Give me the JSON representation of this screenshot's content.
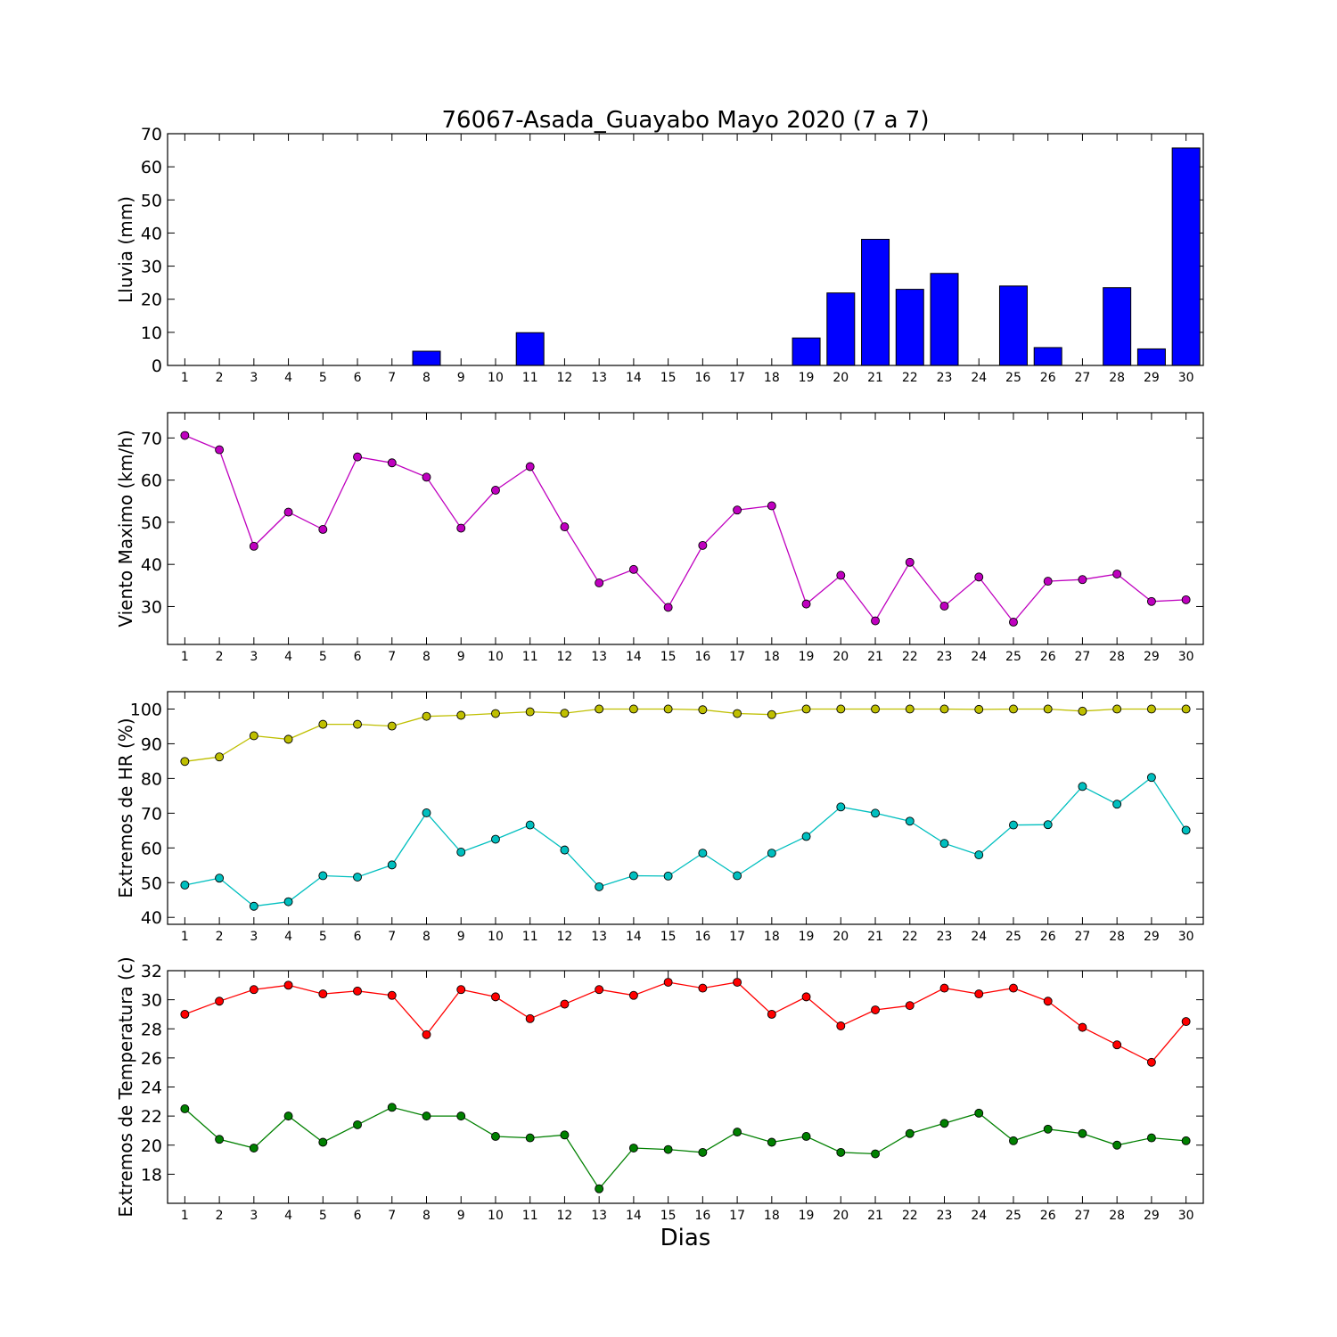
{
  "title": "76067-Asada_Guayabo Mayo 2020  (7 a 7)",
  "xlabel": "Dias",
  "chart_data": [
    {
      "type": "bar",
      "ylabel": "Lluvia (mm)",
      "x": [
        1,
        2,
        3,
        4,
        5,
        6,
        7,
        8,
        9,
        10,
        11,
        12,
        13,
        14,
        15,
        16,
        17,
        18,
        19,
        20,
        21,
        22,
        23,
        24,
        25,
        26,
        27,
        28,
        29,
        30
      ],
      "ylim": [
        0,
        70
      ],
      "yticks": [
        0,
        10,
        20,
        30,
        40,
        50,
        60,
        70
      ],
      "series": [
        {
          "color": "#0000ff",
          "values": [
            0,
            0,
            0,
            0,
            0,
            0,
            0,
            4.3,
            0,
            0,
            9.9,
            0,
            0,
            0,
            0,
            0,
            0,
            0,
            8.3,
            21.9,
            38.1,
            23.0,
            27.8,
            0,
            24.0,
            5.4,
            0,
            23.5,
            5.0,
            65.7
          ]
        }
      ]
    },
    {
      "type": "line",
      "ylabel": "Viento Maximo (km/h)",
      "x": [
        1,
        2,
        3,
        4,
        5,
        6,
        7,
        8,
        9,
        10,
        11,
        12,
        13,
        14,
        15,
        16,
        17,
        18,
        19,
        20,
        21,
        22,
        23,
        24,
        25,
        26,
        27,
        28,
        29,
        30
      ],
      "ylim": [
        21,
        76
      ],
      "yticks": [
        30,
        40,
        50,
        60,
        70
      ],
      "series": [
        {
          "color": "#bf00bf",
          "values": [
            70.6,
            67.2,
            44.3,
            52.4,
            48.3,
            65.5,
            64.1,
            60.7,
            48.6,
            57.6,
            63.2,
            48.9,
            35.6,
            38.8,
            29.8,
            44.5,
            52.9,
            53.9,
            30.6,
            37.4,
            26.6,
            40.5,
            30.1,
            37.0,
            26.3,
            36.0,
            36.4,
            37.7,
            31.2,
            31.6
          ]
        }
      ]
    },
    {
      "type": "line",
      "ylabel": "Extremos de HR (%)",
      "x": [
        1,
        2,
        3,
        4,
        5,
        6,
        7,
        8,
        9,
        10,
        11,
        12,
        13,
        14,
        15,
        16,
        17,
        18,
        19,
        20,
        21,
        22,
        23,
        24,
        25,
        26,
        27,
        28,
        29,
        30
      ],
      "ylim": [
        38,
        105
      ],
      "yticks": [
        40,
        50,
        60,
        70,
        80,
        90,
        100
      ],
      "series": [
        {
          "color": "#bfbf00",
          "values": [
            84.9,
            86.2,
            92.3,
            91.3,
            95.6,
            95.6,
            95.1,
            97.9,
            98.2,
            98.7,
            99.2,
            98.8,
            100,
            100,
            100,
            99.8,
            98.7,
            98.4,
            100,
            100,
            100,
            100,
            100,
            99.9,
            100,
            100,
            99.4,
            100,
            100,
            100
          ]
        },
        {
          "color": "#00bfbf",
          "values": [
            49.3,
            51.3,
            43.2,
            44.5,
            52.0,
            51.6,
            55.1,
            70.1,
            58.8,
            62.5,
            66.6,
            59.4,
            48.8,
            52.0,
            51.9,
            58.5,
            52.0,
            58.5,
            63.3,
            71.8,
            70.0,
            67.7,
            61.3,
            58.0,
            66.6,
            66.7,
            77.7,
            72.6,
            80.3,
            65.1
          ]
        }
      ]
    },
    {
      "type": "line",
      "ylabel": "Extremos de Temperatura (c)",
      "x": [
        1,
        2,
        3,
        4,
        5,
        6,
        7,
        8,
        9,
        10,
        11,
        12,
        13,
        14,
        15,
        16,
        17,
        18,
        19,
        20,
        21,
        22,
        23,
        24,
        25,
        26,
        27,
        28,
        29,
        30
      ],
      "ylim": [
        16,
        32
      ],
      "yticks": [
        18,
        20,
        22,
        24,
        26,
        28,
        30,
        32
      ],
      "series": [
        {
          "color": "#ff0000",
          "values": [
            29.0,
            29.9,
            30.7,
            31.0,
            30.4,
            30.6,
            30.3,
            27.6,
            30.7,
            30.2,
            28.7,
            29.7,
            30.7,
            30.3,
            31.2,
            30.8,
            31.2,
            29.0,
            30.2,
            28.2,
            29.3,
            29.6,
            30.8,
            30.4,
            30.8,
            29.9,
            28.1,
            26.9,
            25.7,
            28.5
          ]
        },
        {
          "color": "#008000",
          "values": [
            22.5,
            20.4,
            19.8,
            22.0,
            20.2,
            21.4,
            22.6,
            22.0,
            22.0,
            20.6,
            20.5,
            20.7,
            17.0,
            19.8,
            19.7,
            19.5,
            20.9,
            20.2,
            20.6,
            19.5,
            19.4,
            20.8,
            21.5,
            22.2,
            20.3,
            21.1,
            20.8,
            20.0,
            20.5,
            20.3
          ]
        }
      ]
    }
  ]
}
